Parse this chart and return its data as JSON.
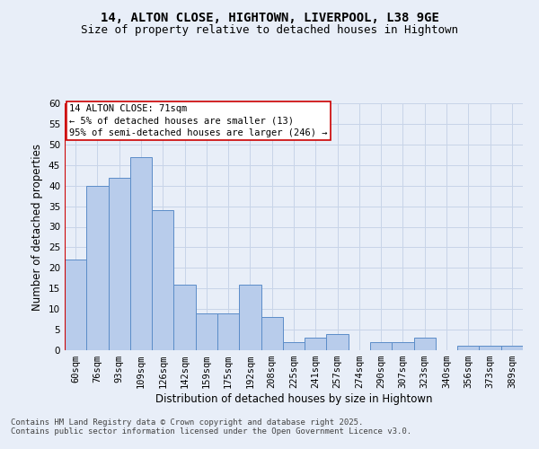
{
  "title_line1": "14, ALTON CLOSE, HIGHTOWN, LIVERPOOL, L38 9GE",
  "title_line2": "Size of property relative to detached houses in Hightown",
  "xlabel": "Distribution of detached houses by size in Hightown",
  "ylabel": "Number of detached properties",
  "footer_line1": "Contains HM Land Registry data © Crown copyright and database right 2025.",
  "footer_line2": "Contains public sector information licensed under the Open Government Licence v3.0.",
  "annotation_line1": "14 ALTON CLOSE: 71sqm",
  "annotation_line2": "← 5% of detached houses are smaller (13)",
  "annotation_line3": "95% of semi-detached houses are larger (246) →",
  "categories": [
    "60sqm",
    "76sqm",
    "93sqm",
    "109sqm",
    "126sqm",
    "142sqm",
    "159sqm",
    "175sqm",
    "192sqm",
    "208sqm",
    "225sqm",
    "241sqm",
    "257sqm",
    "274sqm",
    "290sqm",
    "307sqm",
    "323sqm",
    "340sqm",
    "356sqm",
    "373sqm",
    "389sqm"
  ],
  "values": [
    22,
    40,
    42,
    47,
    34,
    16,
    9,
    9,
    16,
    8,
    2,
    3,
    4,
    0,
    2,
    2,
    3,
    0,
    1,
    1,
    1
  ],
  "bar_color": "#b8cceb",
  "bar_edge_color": "#5b8cc8",
  "background_color": "#e8eef8",
  "grid_color": "#c8d4e8",
  "marker_line_color": "#cc0000",
  "ylim": [
    0,
    60
  ],
  "yticks": [
    0,
    5,
    10,
    15,
    20,
    25,
    30,
    35,
    40,
    45,
    50,
    55,
    60
  ],
  "annotation_box_facecolor": "#ffffff",
  "annotation_box_edgecolor": "#cc0000",
  "title_fontsize": 10,
  "subtitle_fontsize": 9,
  "axis_label_fontsize": 8.5,
  "tick_fontsize": 7.5,
  "annotation_fontsize": 7.5,
  "footer_fontsize": 6.5
}
